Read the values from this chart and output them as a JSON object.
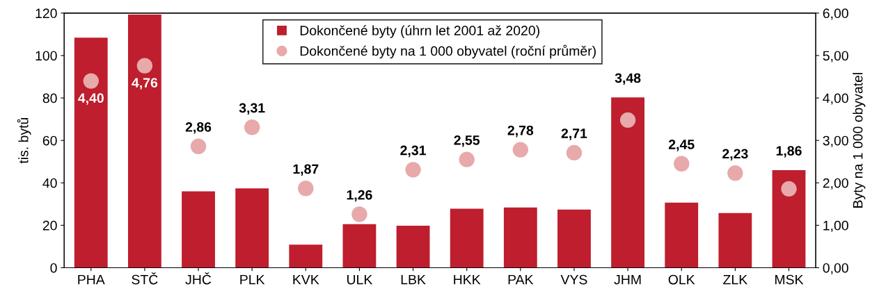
{
  "chart_data": {
    "type": "bar",
    "categories": [
      "PHA",
      "STČ",
      "JHČ",
      "PLK",
      "KVK",
      "ULK",
      "LBK",
      "HKK",
      "PAK",
      "VYS",
      "JHM",
      "OLK",
      "ZLK",
      "MSK"
    ],
    "series": [
      {
        "name": "Dokončené byty (úhrn let 2001 až 2020)",
        "color": "#be1e2d",
        "values": [
          108.4,
          119.3,
          36.0,
          37.4,
          10.9,
          20.5,
          19.8,
          27.8,
          28.4,
          27.4,
          80.3,
          30.7,
          25.8,
          46.0
        ]
      },
      {
        "name": "Dokončené byty na 1 000 obyvatel (roční průměr)",
        "type": "scatter",
        "axis": "y2",
        "color": "#e8a9aa",
        "values": [
          4.4,
          4.76,
          2.86,
          3.31,
          1.87,
          1.26,
          2.31,
          2.55,
          2.78,
          2.71,
          3.48,
          2.45,
          2.23,
          1.86
        ],
        "value_labels": [
          "4,40",
          "4,76",
          "2,86",
          "3,31",
          "1,87",
          "1,26",
          "2,31",
          "2,55",
          "2,78",
          "2,71",
          "3,48",
          "2,45",
          "2,23",
          "1,86"
        ]
      }
    ],
    "ylabel": "tis. bytů",
    "y2label": "Byty na 1 000 obyvatel",
    "ylim": [
      0,
      120
    ],
    "yticks": [
      0,
      20,
      40,
      60,
      80,
      100,
      120
    ],
    "y2lim": [
      0,
      6
    ],
    "y2ticks": [
      {
        "value": 0,
        "label": "0,00"
      },
      {
        "value": 1,
        "label": "1,00"
      },
      {
        "value": 2,
        "label": "2,00"
      },
      {
        "value": 3,
        "label": "3,00"
      },
      {
        "value": 4,
        "label": "4,00"
      },
      {
        "value": 5,
        "label": "5,00"
      },
      {
        "value": 6,
        "label": "6,00"
      }
    ],
    "legend": "top",
    "grid": false,
    "marker": "circle"
  }
}
